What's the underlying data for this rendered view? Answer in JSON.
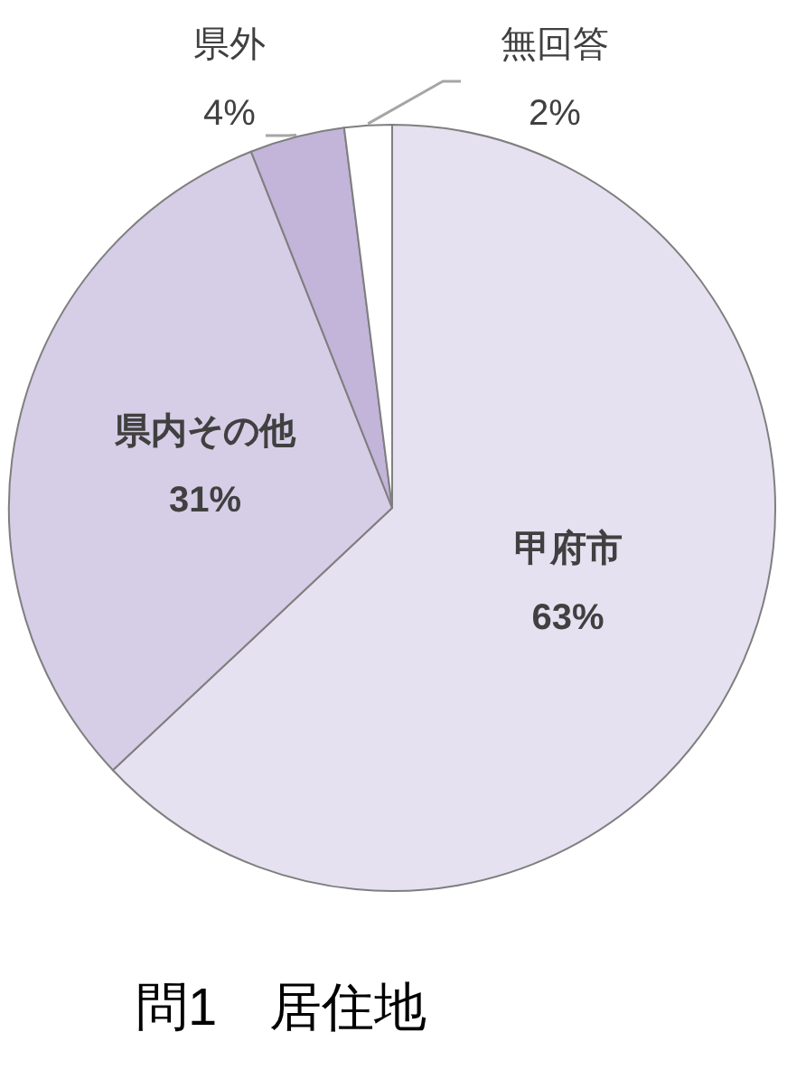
{
  "chart_data": {
    "type": "pie",
    "title": "問1　居住地",
    "categories": [
      "甲府市",
      "県内その他",
      "県外",
      "無回答"
    ],
    "values": [
      63,
      31,
      4,
      2
    ],
    "value_labels": [
      "63%",
      "31%",
      "4%",
      "2%"
    ],
    "colors": [
      "#e6e1f0",
      "#d6cde6",
      "#c3b4da",
      "#ffffff"
    ]
  }
}
